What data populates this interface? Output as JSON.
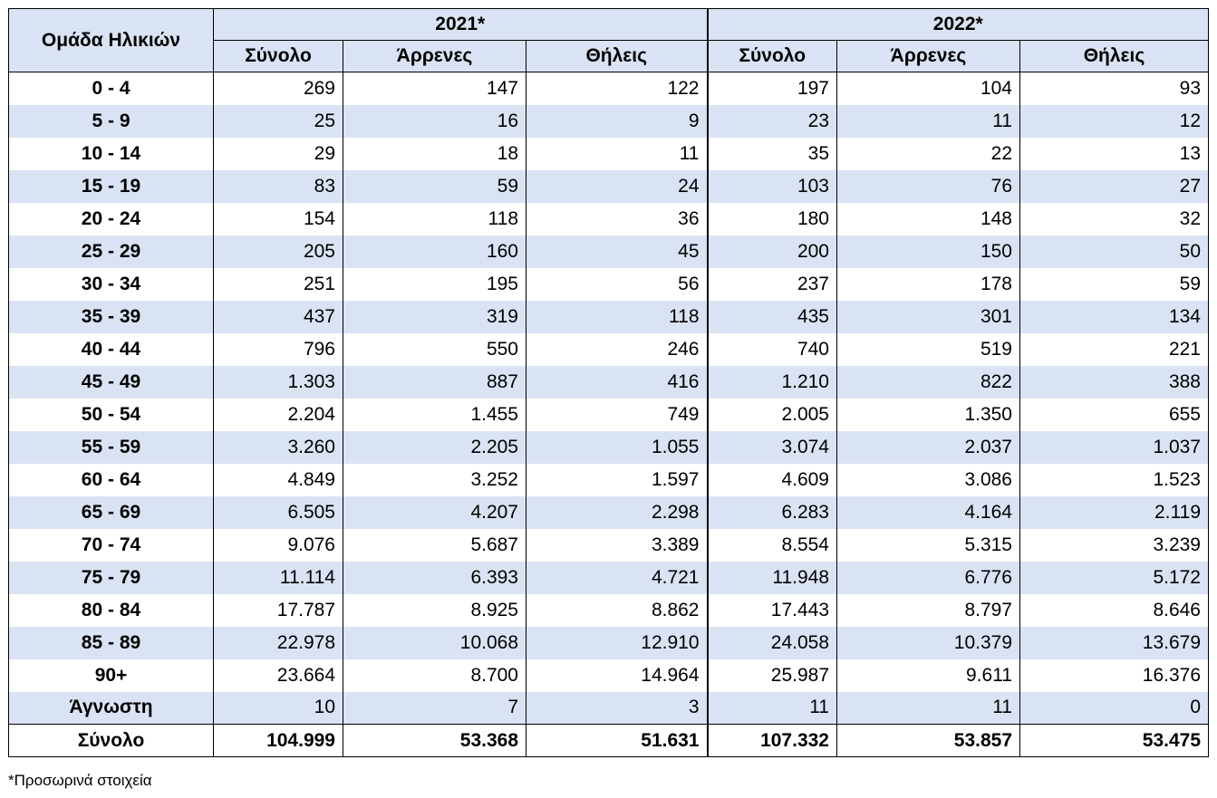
{
  "table": {
    "age_header": "Ομάδα Ηλικιών",
    "groups": [
      "2021*",
      "2022*"
    ],
    "subheaders": [
      "Σύνολο",
      "Άρρενες",
      "Θήλεις",
      "Σύνολο",
      "Άρρενες",
      "Θήλεις"
    ],
    "rows": [
      {
        "age": "0 - 4",
        "v": [
          "269",
          "147",
          "122",
          "197",
          "104",
          "93"
        ]
      },
      {
        "age": "5 - 9",
        "v": [
          "25",
          "16",
          "9",
          "23",
          "11",
          "12"
        ]
      },
      {
        "age": "10 - 14",
        "v": [
          "29",
          "18",
          "11",
          "35",
          "22",
          "13"
        ]
      },
      {
        "age": "15 - 19",
        "v": [
          "83",
          "59",
          "24",
          "103",
          "76",
          "27"
        ]
      },
      {
        "age": "20 - 24",
        "v": [
          "154",
          "118",
          "36",
          "180",
          "148",
          "32"
        ]
      },
      {
        "age": "25 - 29",
        "v": [
          "205",
          "160",
          "45",
          "200",
          "150",
          "50"
        ]
      },
      {
        "age": "30 - 34",
        "v": [
          "251",
          "195",
          "56",
          "237",
          "178",
          "59"
        ]
      },
      {
        "age": "35 - 39",
        "v": [
          "437",
          "319",
          "118",
          "435",
          "301",
          "134"
        ]
      },
      {
        "age": "40 - 44",
        "v": [
          "796",
          "550",
          "246",
          "740",
          "519",
          "221"
        ]
      },
      {
        "age": "45 - 49",
        "v": [
          "1.303",
          "887",
          "416",
          "1.210",
          "822",
          "388"
        ]
      },
      {
        "age": "50 - 54",
        "v": [
          "2.204",
          "1.455",
          "749",
          "2.005",
          "1.350",
          "655"
        ]
      },
      {
        "age": "55 - 59",
        "v": [
          "3.260",
          "2.205",
          "1.055",
          "3.074",
          "2.037",
          "1.037"
        ]
      },
      {
        "age": "60 - 64",
        "v": [
          "4.849",
          "3.252",
          "1.597",
          "4.609",
          "3.086",
          "1.523"
        ]
      },
      {
        "age": "65 - 69",
        "v": [
          "6.505",
          "4.207",
          "2.298",
          "6.283",
          "4.164",
          "2.119"
        ]
      },
      {
        "age": "70 - 74",
        "v": [
          "9.076",
          "5.687",
          "3.389",
          "8.554",
          "5.315",
          "3.239"
        ]
      },
      {
        "age": "75 - 79",
        "v": [
          "11.114",
          "6.393",
          "4.721",
          "11.948",
          "6.776",
          "5.172"
        ]
      },
      {
        "age": "80 - 84",
        "v": [
          "17.787",
          "8.925",
          "8.862",
          "17.443",
          "8.797",
          "8.646"
        ]
      },
      {
        "age": "85 - 89",
        "v": [
          "22.978",
          "10.068",
          "12.910",
          "24.058",
          "10.379",
          "13.679"
        ]
      },
      {
        "age": "90+",
        "v": [
          "23.664",
          "8.700",
          "14.964",
          "25.987",
          "9.611",
          "16.376"
        ]
      },
      {
        "age": "Άγνωστη",
        "v": [
          "10",
          "7",
          "3",
          "11",
          "11",
          "0"
        ]
      }
    ],
    "total": {
      "age": "Σύνολο",
      "v": [
        "104.999",
        "53.368",
        "51.631",
        "107.332",
        "53.857",
        "53.475"
      ]
    }
  },
  "footnote": "*Προσωρινά στοιχεία"
}
